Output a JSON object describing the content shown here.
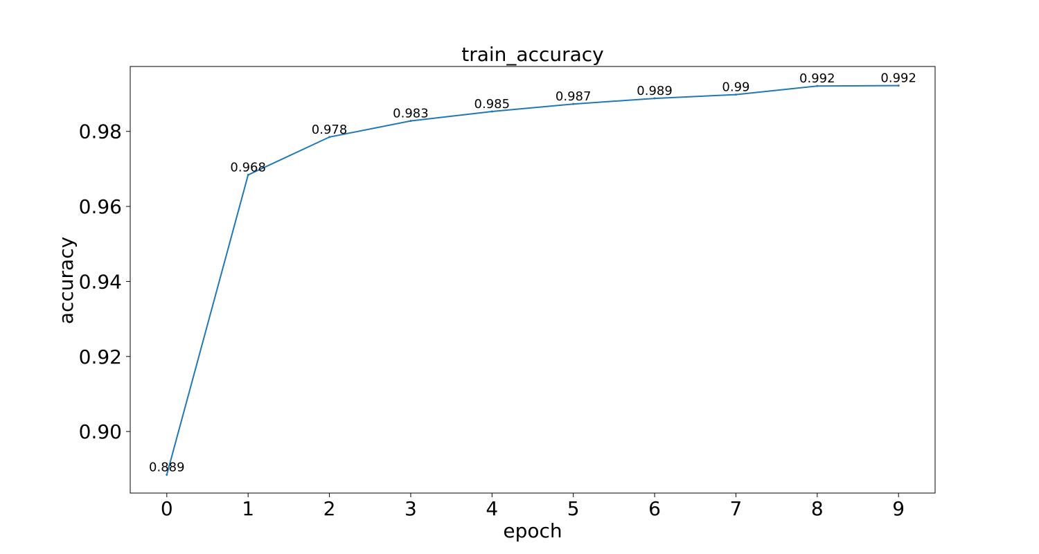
{
  "chart_data": {
    "type": "line",
    "title": "train_accuracy",
    "xlabel": "epoch",
    "ylabel": "accuracy",
    "x": [
      0,
      1,
      2,
      3,
      4,
      5,
      6,
      7,
      8,
      9
    ],
    "series": [
      {
        "values": [
          0.8885,
          0.9684,
          0.9785,
          0.9828,
          0.9853,
          0.9873,
          0.9888,
          0.9898,
          0.9921,
          0.9922
        ],
        "labels": [
          "0.889",
          "0.968",
          "0.978",
          "0.983",
          "0.985",
          "0.987",
          "0.989",
          "0.99",
          "0.992",
          "0.992"
        ],
        "color": "#1f77b4"
      }
    ],
    "xticks": [
      "0",
      "1",
      "2",
      "3",
      "4",
      "5",
      "6",
      "7",
      "8",
      "9"
    ],
    "yticks": [
      {
        "value": 0.9,
        "label": "0.90"
      },
      {
        "value": 0.92,
        "label": "0.92"
      },
      {
        "value": 0.94,
        "label": "0.94"
      },
      {
        "value": 0.96,
        "label": "0.96"
      },
      {
        "value": 0.98,
        "label": "0.98"
      }
    ],
    "xlim": [
      -0.45,
      9.45
    ],
    "ylim": [
      0.8836,
      0.9973
    ],
    "grid": false,
    "legend": "none"
  }
}
